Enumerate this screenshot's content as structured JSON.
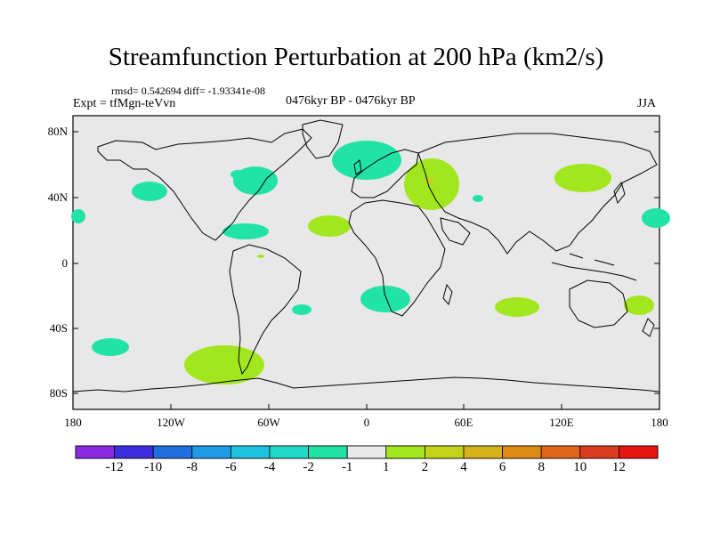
{
  "title": "Streamfunction Perturbation at 200 hPa (km2/s)",
  "stats": "rmsd= 0.542694  diff= -1.93341e-08",
  "experiment": "Expt = tfMgn-teVvn",
  "period": "0476kyr BP - 0476kyr BP",
  "season": "JJA",
  "map": {
    "background_color": "#e8e8e8",
    "y_ticks": [
      "80N",
      "40N",
      "0",
      "40S",
      "80S"
    ],
    "x_ticks": [
      "180",
      "120W",
      "60W",
      "0",
      "60E",
      "120E",
      "180"
    ]
  },
  "colorbar": {
    "colors": [
      "#8a2be2",
      "#3a2ee0",
      "#1f6fe0",
      "#1e9ae6",
      "#1ec3e0",
      "#22d8c8",
      "#22e3a6",
      "#e8e8e8",
      "#a2e61e",
      "#c6d21a",
      "#d6b21a",
      "#dc8c14",
      "#e0641a",
      "#dc3c1e",
      "#e61414"
    ],
    "labels": [
      "-12",
      "-10",
      "-8",
      "-6",
      "-4",
      "-2",
      "-1",
      "1",
      "2",
      "4",
      "6",
      "8",
      "10",
      "12"
    ]
  }
}
